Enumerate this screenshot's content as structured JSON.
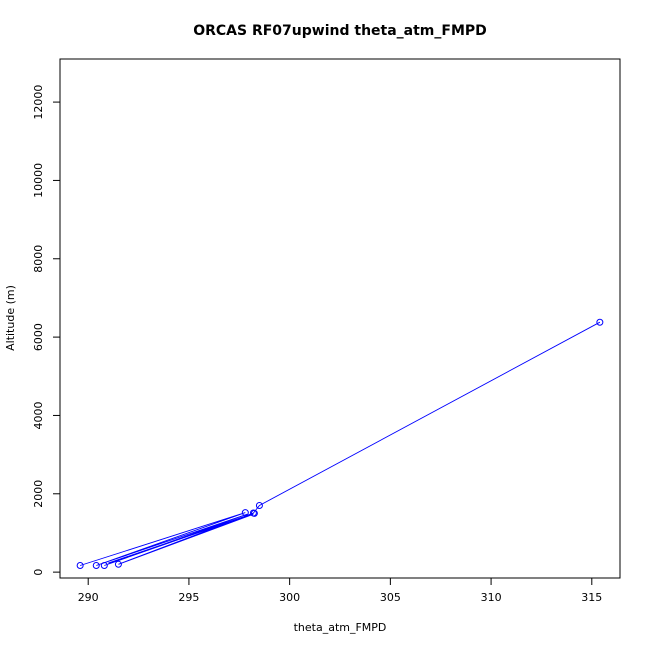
{
  "chart_data": {
    "type": "line",
    "title": "ORCAS RF07upwind theta_atm_FMPD",
    "xlabel": "theta_atm_FMPD",
    "ylabel": "Altitude (m)",
    "xlim": [
      288.6,
      316.4
    ],
    "ylim": [
      -150,
      13100
    ],
    "xticks": [
      290,
      295,
      300,
      305,
      310,
      315
    ],
    "yticks": [
      0,
      2000,
      4000,
      6000,
      8000,
      10000,
      12000
    ],
    "series": [
      {
        "color": "#0000ff",
        "x": [
          289.6,
          297.8,
          290.4,
          297.9,
          290.8,
          298.2,
          291.0,
          298.2,
          291.5,
          298.2,
          298.5,
          315.4
        ],
        "y": [
          170,
          1520,
          170,
          1480,
          170,
          1500,
          230,
          1480,
          200,
          1510,
          1700,
          6380
        ],
        "markers": [
          {
            "x": 289.6,
            "y": 170
          },
          {
            "x": 290.4,
            "y": 170
          },
          {
            "x": 290.8,
            "y": 170
          },
          {
            "x": 291.5,
            "y": 200
          },
          {
            "x": 297.8,
            "y": 1520
          },
          {
            "x": 298.2,
            "y": 1510
          },
          {
            "x": 298.25,
            "y": 1500
          },
          {
            "x": 298.5,
            "y": 1700
          },
          {
            "x": 315.4,
            "y": 6380
          }
        ]
      }
    ]
  }
}
